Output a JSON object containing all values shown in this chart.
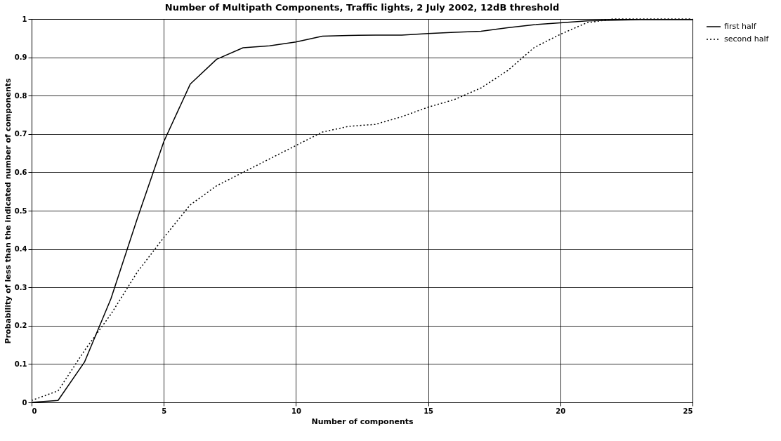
{
  "chart_data": {
    "type": "line",
    "title": "Number of Multipath Components, Traffic lights, 2 July 2002, 12dB threshold",
    "xlabel": "Number of components",
    "ylabel": "Probability of less than the indicated number of components",
    "x": [
      0,
      1,
      2,
      3,
      4,
      5,
      6,
      7,
      8,
      9,
      10,
      11,
      12,
      13,
      14,
      15,
      16,
      17,
      18,
      19,
      20,
      21,
      22,
      23,
      24,
      25
    ],
    "series": [
      {
        "name": "first half",
        "color": "#000000",
        "line_style": "solid",
        "values": [
          0,
          0.005,
          0.105,
          0.27,
          0.48,
          0.68,
          0.83,
          0.895,
          0.925,
          0.93,
          0.94,
          0.955,
          0.957,
          0.958,
          0.958,
          0.962,
          0.965,
          0.968,
          0.977,
          0.985,
          0.99,
          0.995,
          0.997,
          0.998,
          0.998,
          0.998
        ]
      },
      {
        "name": "second half",
        "color": "#000000",
        "line_style": "dotted",
        "values": [
          0.005,
          0.03,
          0.135,
          0.23,
          0.34,
          0.43,
          0.515,
          0.565,
          0.6,
          0.635,
          0.67,
          0.705,
          0.72,
          0.725,
          0.745,
          0.77,
          0.79,
          0.82,
          0.865,
          0.925,
          0.96,
          0.99,
          1,
          1,
          1,
          1
        ]
      }
    ],
    "xlim": [
      0,
      25
    ],
    "xticks": [
      0,
      5,
      10,
      15,
      20,
      25
    ],
    "ylim": [
      0,
      1
    ],
    "yticks": [
      0,
      0.1,
      0.2,
      0.3,
      0.4,
      0.5,
      0.6,
      0.7,
      0.8,
      0.9,
      1
    ],
    "grid": true,
    "legend": "right",
    "marker": "none"
  }
}
